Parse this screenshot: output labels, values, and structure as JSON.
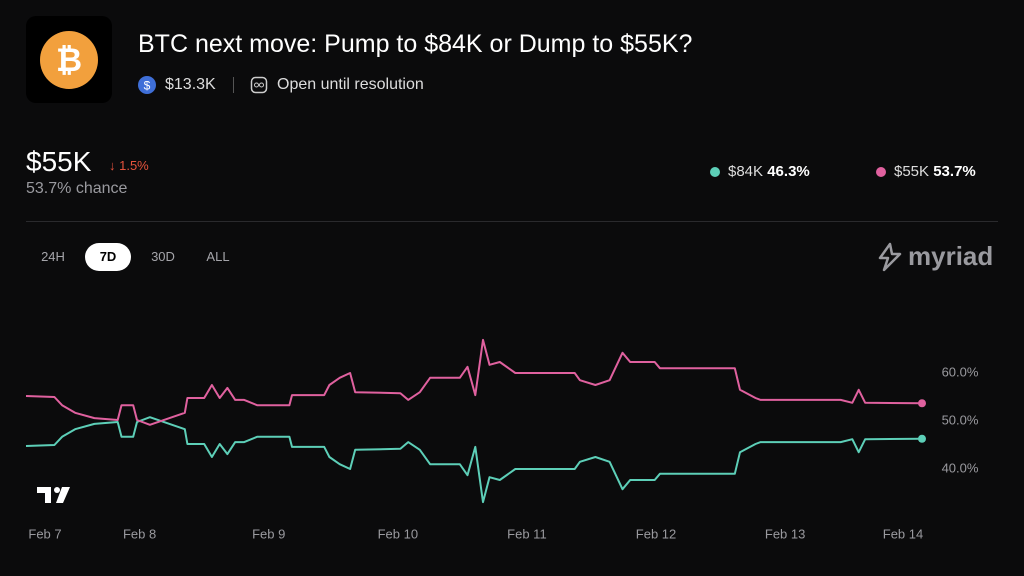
{
  "header": {
    "title": "BTC next move: Pump to $84K or Dump to $55K?",
    "volume": "$13.3K",
    "status": "Open until resolution"
  },
  "summary": {
    "outcome": "$55K",
    "change": "↓ 1.5%",
    "chance": "53.7% chance",
    "legend": [
      {
        "name": "$84K",
        "value": "46.3%"
      },
      {
        "name": "$55K",
        "value": "53.7%"
      }
    ]
  },
  "tabs": [
    "24H",
    "7D",
    "30D",
    "ALL"
  ],
  "active_tab": 1,
  "brand": "myriad",
  "chart_data": {
    "type": "line",
    "x": [
      7.12,
      7.34,
      7.4,
      7.5,
      7.65,
      7.83,
      7.86,
      7.95,
      7.98,
      8.08,
      8.35,
      8.37,
      8.5,
      8.56,
      8.62,
      8.68,
      8.74,
      8.81,
      8.91,
      9.16,
      9.18,
      9.43,
      9.47,
      9.55,
      9.63,
      9.67,
      10.02,
      10.08,
      10.17,
      10.25,
      10.48,
      10.54,
      10.6,
      10.66,
      10.71,
      10.79,
      10.91,
      11.37,
      11.41,
      11.53,
      11.64,
      11.74,
      11.8,
      11.99,
      12.03,
      12.61,
      12.65,
      12.77,
      12.81,
      13.43,
      13.52,
      13.57,
      13.62,
      14.06
    ],
    "series": [
      {
        "name": "$84K",
        "color": "#5dcfb8",
        "values": [
          44.8,
          45.0,
          46.7,
          48.3,
          49.4,
          49.8,
          46.7,
          46.7,
          49.8,
          50.8,
          48.3,
          45.2,
          45.2,
          42.5,
          45.2,
          43.1,
          45.6,
          45.6,
          46.7,
          46.7,
          44.6,
          44.6,
          42.5,
          41.0,
          40.0,
          44.0,
          44.2,
          45.6,
          44.0,
          41.0,
          41.0,
          38.7,
          44.6,
          33.1,
          38.3,
          37.7,
          40.0,
          40.0,
          41.5,
          42.5,
          41.5,
          35.8,
          37.7,
          37.7,
          39.0,
          39.0,
          43.5,
          45.2,
          45.6,
          45.6,
          46.2,
          43.5,
          46.2,
          46.3
        ]
      },
      {
        "name": "$55K",
        "color": "#e0619f",
        "values": [
          55.2,
          55.0,
          53.3,
          51.7,
          50.6,
          50.2,
          53.3,
          53.3,
          50.2,
          49.2,
          51.7,
          54.8,
          54.8,
          57.5,
          54.8,
          56.9,
          54.4,
          54.4,
          53.3,
          53.3,
          55.4,
          55.4,
          57.5,
          59.0,
          60.0,
          56.0,
          55.8,
          54.4,
          56.0,
          59.0,
          59.0,
          61.3,
          55.4,
          66.9,
          61.7,
          62.3,
          60.0,
          60.0,
          58.5,
          57.5,
          58.5,
          64.2,
          62.3,
          62.3,
          61.0,
          61.0,
          56.5,
          54.8,
          54.4,
          54.4,
          53.8,
          56.5,
          53.8,
          53.7
        ]
      }
    ],
    "xlim": [
      7.12,
      14.06
    ],
    "xticks": [
      {
        "value": 7,
        "label": "Feb 7"
      },
      {
        "value": 8,
        "label": "Feb 8"
      },
      {
        "value": 9,
        "label": "Feb 9"
      },
      {
        "value": 10,
        "label": "Feb 10"
      },
      {
        "value": 11,
        "label": "Feb 11"
      },
      {
        "value": 12,
        "label": "Feb 12"
      },
      {
        "value": 13,
        "label": "Feb 13"
      },
      {
        "value": 14,
        "label": "Feb 14"
      }
    ],
    "ylim": [
      30,
      70
    ],
    "yticks": [
      {
        "value": 40,
        "label": "40.0%"
      },
      {
        "value": 50,
        "label": "50.0%"
      },
      {
        "value": 60,
        "label": "60.0%"
      }
    ],
    "grid": false
  }
}
